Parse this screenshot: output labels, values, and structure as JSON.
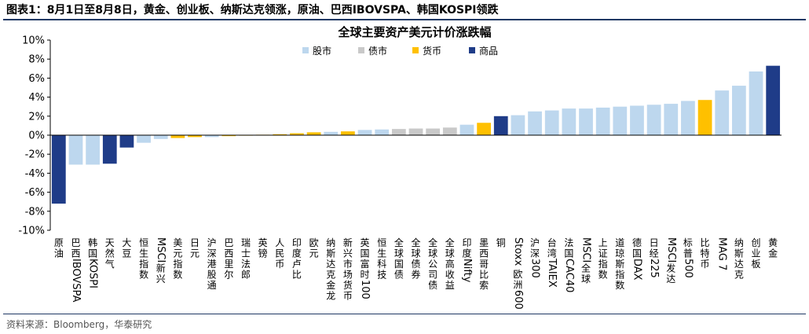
{
  "figure": {
    "label": "图表1：",
    "title": "8月1日至8月8日，黄金、创业板、纳斯达克领涨，原油、巴西IBOVSPA、韩国KOSPI领跌",
    "source": "资料来源：Bloomberg，华泰研究"
  },
  "colors": {
    "股市": "#bdd7ee",
    "债市": "#c9c9c9",
    "货币": "#ffc000",
    "商品": "#1f3c88"
  },
  "chart_data": {
    "type": "bar",
    "title": "全球主要资产美元计价涨跌幅",
    "ylim": [
      -10,
      10
    ],
    "yticks": [
      "-10%",
      "-8%",
      "-6%",
      "-4%",
      "-2%",
      "0%",
      "2%",
      "4%",
      "6%",
      "8%",
      "10%"
    ],
    "grid": false,
    "legend_position": "top",
    "legend": [
      "股市",
      "债市",
      "货币",
      "商品"
    ],
    "categories": [
      "原油",
      "巴西IBOVSPA",
      "韩国KOSPI",
      "天然气",
      "大豆",
      "恒生指数",
      "MSCI新兴",
      "美元指数",
      "日元",
      "沪深港股通",
      "巴西里尔",
      "瑞士法郎",
      "英镑",
      "人民币",
      "印度卢比",
      "欧元",
      "纳斯达克金龙",
      "新兴市场货币",
      "英国富时100",
      "恒生科技",
      "全球国债",
      "全球债券",
      "全球公司债",
      "全球高收益",
      "印度Nifty",
      "墨西哥比索",
      "铜",
      "Stoxx欧洲600",
      "沪深300",
      "台湾TAIEX",
      "法国CAC40",
      "MSCI全球",
      "上证指数",
      "道琼斯指数",
      "德国DAX",
      "日经225",
      "MSCI发达",
      "标普500",
      "比特币",
      "MAG 7",
      "纳斯达克",
      "创业板",
      "黄金"
    ],
    "values": [
      -7.2,
      -3.1,
      -3.1,
      -3.0,
      -1.3,
      -0.8,
      -0.4,
      -0.3,
      -0.2,
      -0.2,
      -0.1,
      -0.05,
      0.05,
      0.1,
      0.2,
      0.3,
      0.35,
      0.4,
      0.55,
      0.6,
      0.65,
      0.7,
      0.7,
      0.8,
      1.1,
      1.3,
      2.0,
      2.1,
      2.5,
      2.6,
      2.8,
      2.8,
      2.9,
      3.0,
      3.1,
      3.2,
      3.3,
      3.6,
      3.7,
      4.7,
      5.2,
      6.7,
      7.3
    ],
    "groups": [
      "商品",
      "股市",
      "股市",
      "商品",
      "商品",
      "股市",
      "股市",
      "货币",
      "货币",
      "股市",
      "货币",
      "货币",
      "货币",
      "货币",
      "货币",
      "货币",
      "股市",
      "货币",
      "股市",
      "股市",
      "债市",
      "债市",
      "债市",
      "债市",
      "股市",
      "货币",
      "商品",
      "股市",
      "股市",
      "股市",
      "股市",
      "股市",
      "股市",
      "股市",
      "股市",
      "股市",
      "股市",
      "股市",
      "货币",
      "股市",
      "股市",
      "股市",
      "商品"
    ]
  }
}
